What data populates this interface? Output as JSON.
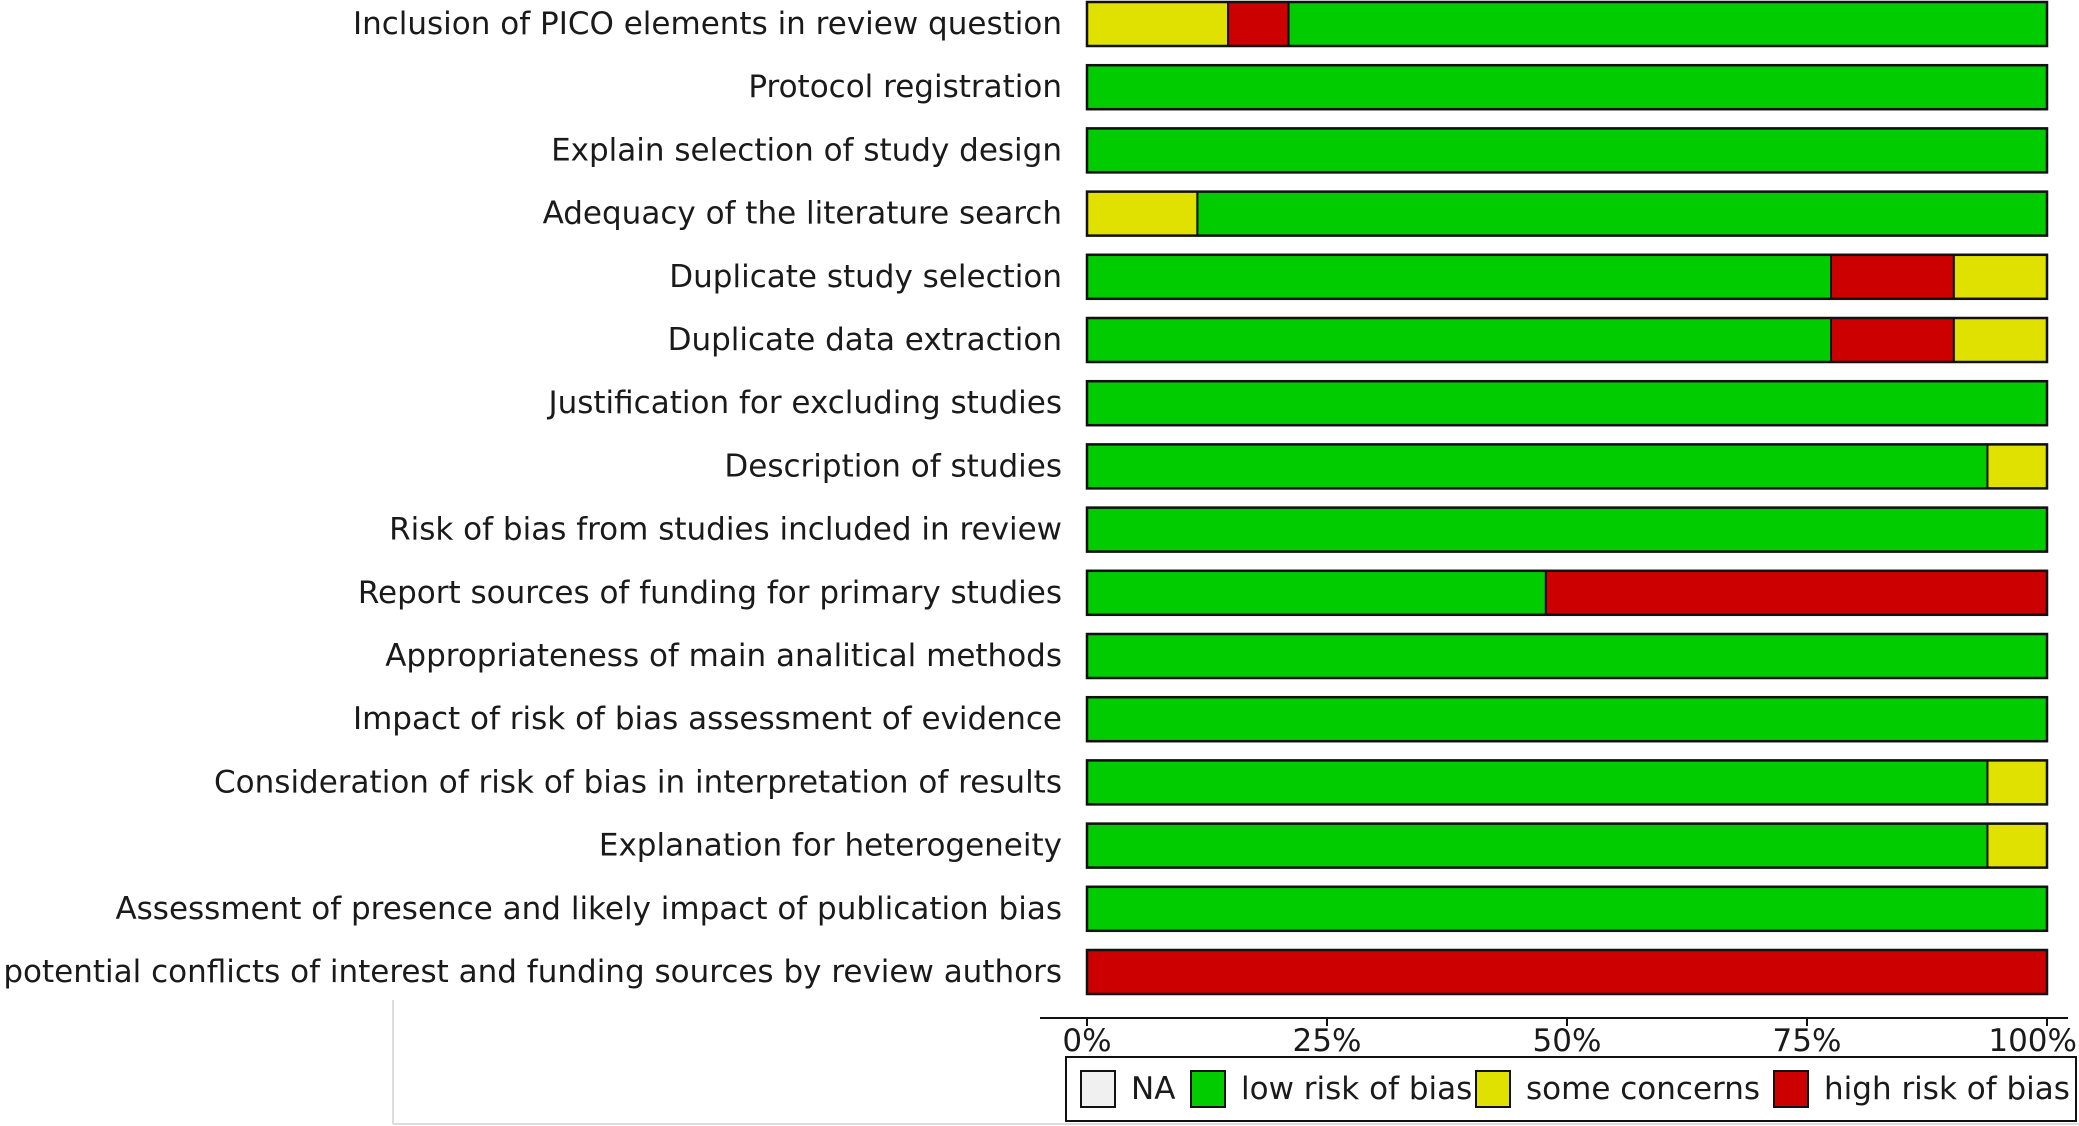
{
  "chart_data": {
    "type": "bar",
    "orientation": "horizontal",
    "stacked": true,
    "categories": [
      "Inclusion of PICO elements in review question",
      "Protocol registration",
      "Explain selection of study design",
      "Adequacy of the literature search",
      "Duplicate study selection",
      "Duplicate data extraction",
      "Justification for excluding studies",
      "Description of studies",
      "Risk of bias from studies included in review",
      "Report sources of funding for primary studies",
      "Appropriateness of main analitical methods",
      "Impact of risk of bias assessment of evidence",
      "Consideration of risk of bias in interpretation of results",
      "Explanation for heterogeneity",
      "Assessment of presence and likely impact of publication bias",
      "Report potential conflicts of interest and funding sources by review authors"
    ],
    "segments": [
      [
        {
          "key": "some",
          "value": 14.7
        },
        {
          "key": "high",
          "value": 6.3
        },
        {
          "key": "low",
          "value": 79.0
        }
      ],
      [
        {
          "key": "low",
          "value": 100
        }
      ],
      [
        {
          "key": "low",
          "value": 100
        }
      ],
      [
        {
          "key": "some",
          "value": 11.5
        },
        {
          "key": "low",
          "value": 88.5
        }
      ],
      [
        {
          "key": "low",
          "value": 77.5
        },
        {
          "key": "high",
          "value": 12.8
        },
        {
          "key": "some",
          "value": 9.7
        }
      ],
      [
        {
          "key": "low",
          "value": 77.5
        },
        {
          "key": "high",
          "value": 12.8
        },
        {
          "key": "some",
          "value": 9.7
        }
      ],
      [
        {
          "key": "low",
          "value": 100
        }
      ],
      [
        {
          "key": "low",
          "value": 93.8
        },
        {
          "key": "some",
          "value": 6.2
        }
      ],
      [
        {
          "key": "low",
          "value": 100
        }
      ],
      [
        {
          "key": "low",
          "value": 47.8
        },
        {
          "key": "high",
          "value": 52.2
        }
      ],
      [
        {
          "key": "low",
          "value": 100
        }
      ],
      [
        {
          "key": "low",
          "value": 100
        }
      ],
      [
        {
          "key": "low",
          "value": 93.8
        },
        {
          "key": "some",
          "value": 6.2
        }
      ],
      [
        {
          "key": "low",
          "value": 93.8
        },
        {
          "key": "some",
          "value": 6.2
        }
      ],
      [
        {
          "key": "low",
          "value": 100
        }
      ],
      [
        {
          "key": "high",
          "value": 100
        }
      ]
    ],
    "xticks": [
      0,
      25,
      50,
      75,
      100
    ],
    "xtick_labels": [
      "0%",
      "25%",
      "50%",
      "75%",
      "100%"
    ],
    "xlim": [
      0,
      100
    ],
    "legend": [
      {
        "key": "na",
        "label": "NA",
        "color": "#f0f0f0"
      },
      {
        "key": "low",
        "label": "low risk of bias",
        "color": "#00cc00"
      },
      {
        "key": "some",
        "label": "some concerns",
        "color": "#e1e100"
      },
      {
        "key": "high",
        "label": "high risk of bias",
        "color": "#cc0000"
      }
    ],
    "legend_position": "bottom",
    "grid": false
  }
}
